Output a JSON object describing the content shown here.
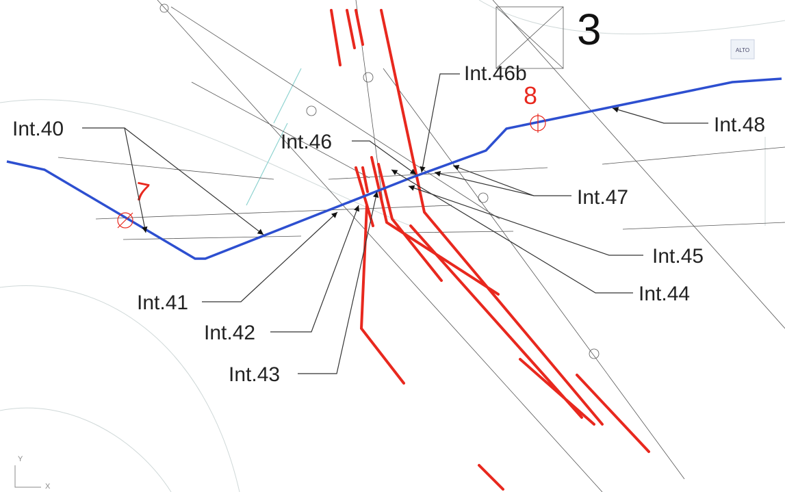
{
  "sheet_number": "3",
  "points": [
    {
      "label": "7"
    },
    {
      "label": "8"
    }
  ],
  "intersections": [
    {
      "label": "Int.40"
    },
    {
      "label": "Int.41"
    },
    {
      "label": "Int.42"
    },
    {
      "label": "Int.43"
    },
    {
      "label": "Int.44"
    },
    {
      "label": "Int.45"
    },
    {
      "label": "Int.46"
    },
    {
      "label": "Int.46b"
    },
    {
      "label": "Int.47"
    },
    {
      "label": "Int.48"
    }
  ],
  "view_cube": {
    "top": "ALTO"
  },
  "axes": {
    "y": "Y",
    "x": "X"
  }
}
